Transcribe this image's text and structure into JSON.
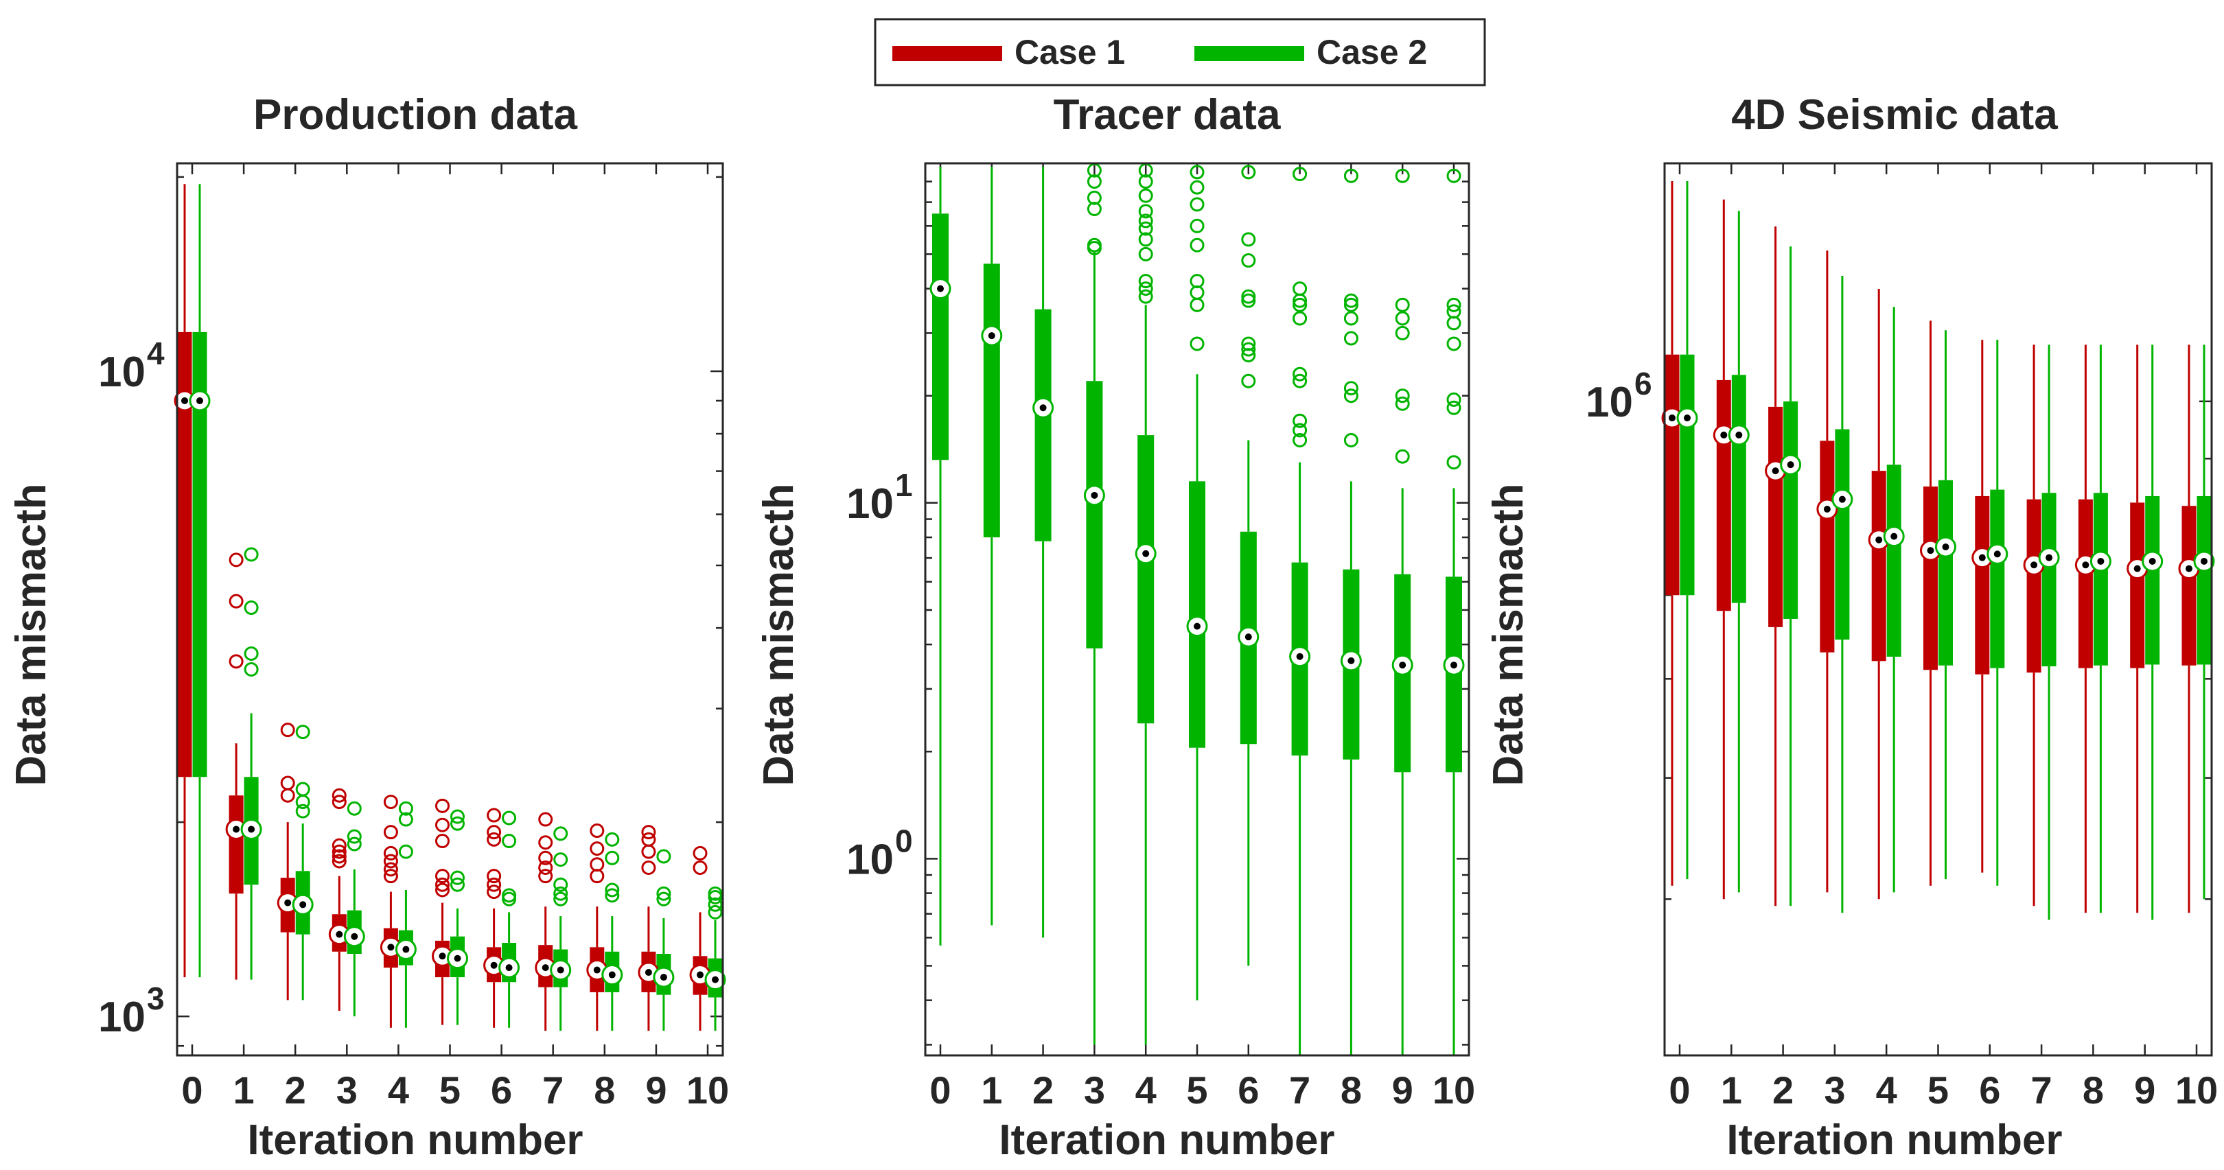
{
  "legend": {
    "items": [
      {
        "label": "Case 1",
        "color": "#c00000"
      },
      {
        "label": "Case 2",
        "color": "#00b400"
      }
    ]
  },
  "colors": {
    "case1": "#c00000",
    "case2": "#00b400",
    "axis": "#262626"
  },
  "chart_data": [
    {
      "type": "box",
      "title": "Production data",
      "xlabel": "Iteration number",
      "ylabel": "Data mismacth",
      "yscale": "log",
      "ylim": [
        870,
        21000
      ],
      "ytick_labels": [
        {
          "value": 1000,
          "exp": "3"
        },
        {
          "value": 10000,
          "exp": "4"
        }
      ],
      "categories": [
        "0",
        "1",
        "2",
        "3",
        "4",
        "5",
        "6",
        "7",
        "8",
        "9",
        "10"
      ],
      "series": [
        {
          "name": "Case 1",
          "boxes": [
            {
              "whislo": 1150,
              "q1": 2350,
              "med": 9000,
              "q3": 11500,
              "whishi": 19500,
              "fliers": []
            },
            {
              "whislo": 1140,
              "q1": 1550,
              "med": 1950,
              "q3": 2200,
              "whishi": 2650,
              "fliers": [
                3550,
                4400,
                5100
              ]
            },
            {
              "whislo": 1060,
              "q1": 1350,
              "med": 1500,
              "q3": 1640,
              "whishi": 2000,
              "fliers": [
                2200,
                2300,
                2780
              ]
            },
            {
              "whislo": 1020,
              "q1": 1260,
              "med": 1340,
              "q3": 1440,
              "whishi": 1650,
              "fliers": [
                1740,
                1770,
                1800,
                1840,
                2150,
                2200
              ]
            },
            {
              "whislo": 960,
              "q1": 1190,
              "med": 1280,
              "q3": 1370,
              "whishi": 1560,
              "fliers": [
                1650,
                1690,
                1740,
                1790,
                1930,
                2150
              ]
            },
            {
              "whislo": 970,
              "q1": 1150,
              "med": 1240,
              "q3": 1310,
              "whishi": 1500,
              "fliers": [
                1570,
                1600,
                1650,
                1870,
                1980,
                2120
              ]
            },
            {
              "whislo": 960,
              "q1": 1130,
              "med": 1200,
              "q3": 1280,
              "whishi": 1470,
              "fliers": [
                1560,
                1600,
                1650,
                1880,
                1930,
                2050
              ]
            },
            {
              "whislo": 950,
              "q1": 1110,
              "med": 1190,
              "q3": 1290,
              "whishi": 1480,
              "fliers": [
                1650,
                1700,
                1760,
                1860,
                2020
              ]
            },
            {
              "whislo": 950,
              "q1": 1090,
              "med": 1180,
              "q3": 1280,
              "whishi": 1480,
              "fliers": [
                1650,
                1720,
                1820,
                1940
              ]
            },
            {
              "whislo": 950,
              "q1": 1090,
              "med": 1170,
              "q3": 1260,
              "whishi": 1480,
              "fliers": [
                1700,
                1800,
                1880,
                1930
              ]
            },
            {
              "whislo": 950,
              "q1": 1080,
              "med": 1160,
              "q3": 1240,
              "whishi": 1450,
              "fliers": [
                1700,
                1790
              ]
            }
          ]
        },
        {
          "name": "Case 2",
          "boxes": [
            {
              "whislo": 1150,
              "q1": 2350,
              "med": 9000,
              "q3": 11500,
              "whishi": 19500,
              "fliers": []
            },
            {
              "whislo": 1140,
              "q1": 1600,
              "med": 1950,
              "q3": 2350,
              "whishi": 2950,
              "fliers": [
                3450,
                3650,
                4300,
                5200
              ]
            },
            {
              "whislo": 1060,
              "q1": 1340,
              "med": 1490,
              "q3": 1680,
              "whishi": 1990,
              "fliers": [
                2080,
                2150,
                2250,
                2760
              ]
            },
            {
              "whislo": 1000,
              "q1": 1250,
              "med": 1330,
              "q3": 1460,
              "whishi": 1690,
              "fliers": [
                1850,
                1900,
                2100
              ]
            },
            {
              "whislo": 960,
              "q1": 1200,
              "med": 1270,
              "q3": 1360,
              "whishi": 1570,
              "fliers": [
                1800,
                2020,
                2100
              ]
            },
            {
              "whislo": 970,
              "q1": 1150,
              "med": 1230,
              "q3": 1330,
              "whishi": 1470,
              "fliers": [
                1600,
                1640,
                1990,
                2040
              ]
            },
            {
              "whislo": 960,
              "q1": 1130,
              "med": 1190,
              "q3": 1300,
              "whishi": 1450,
              "fliers": [
                1520,
                1540,
                1870,
                2030
              ]
            },
            {
              "whislo": 950,
              "q1": 1110,
              "med": 1180,
              "q3": 1270,
              "whishi": 1430,
              "fliers": [
                1520,
                1550,
                1600,
                1750,
                1920
              ]
            },
            {
              "whislo": 950,
              "q1": 1090,
              "med": 1160,
              "q3": 1260,
              "whishi": 1430,
              "fliers": [
                1540,
                1570,
                1760,
                1880
              ]
            },
            {
              "whislo": 950,
              "q1": 1080,
              "med": 1150,
              "q3": 1250,
              "whishi": 1420,
              "fliers": [
                1520,
                1550,
                1770
              ]
            },
            {
              "whislo": 950,
              "q1": 1070,
              "med": 1140,
              "q3": 1230,
              "whishi": 1410,
              "fliers": [
                1450,
                1490,
                1530,
                1550
              ]
            }
          ]
        }
      ]
    },
    {
      "type": "box",
      "title": "Tracer data",
      "xlabel": "Iteration number",
      "ylabel": "Data mismacth",
      "yscale": "log",
      "ylim": [
        0.28,
        90
      ],
      "ytick_labels": [
        {
          "value": 1,
          "exp": "0"
        },
        {
          "value": 10,
          "exp": "1"
        }
      ],
      "categories": [
        "0",
        "1",
        "2",
        "3",
        "4",
        "5",
        "6",
        "7",
        "8",
        "9",
        "10"
      ],
      "series": [
        {
          "name": "Case 2",
          "boxes": [
            {
              "whislo": 0.57,
              "q1": 13.2,
              "med": 40.0,
              "q3": 65.0,
              "whishi": 88.0,
              "fliers": []
            },
            {
              "whislo": 0.65,
              "q1": 8.0,
              "med": 29.5,
              "q3": 47.0,
              "whishi": 88.0,
              "fliers": []
            },
            {
              "whislo": 0.6,
              "q1": 7.8,
              "med": 18.5,
              "q3": 35.0,
              "whishi": 88.0,
              "fliers": []
            },
            {
              "whislo": 0.3,
              "q1": 3.9,
              "med": 10.5,
              "q3": 22.0,
              "whishi": 51.0,
              "fliers": [
                52.0,
                53.0,
                67.0,
                72.0,
                80.0,
                86.0
              ]
            },
            {
              "whislo": 0.3,
              "q1": 2.4,
              "med": 7.2,
              "q3": 15.5,
              "whishi": 36.0,
              "fliers": [
                38.0,
                40.0,
                42.0,
                50.0,
                55.0,
                59.0,
                62.0,
                66.0,
                73.0,
                80.0,
                86.0
              ]
            },
            {
              "whislo": 0.4,
              "q1": 2.05,
              "med": 4.5,
              "q3": 11.5,
              "whishi": 23.0,
              "fliers": [
                28.0,
                36.0,
                39.0,
                42.0,
                53.0,
                60.0,
                69.0,
                77.0,
                85.0
              ]
            },
            {
              "whislo": 0.5,
              "q1": 2.1,
              "med": 4.2,
              "q3": 8.3,
              "whishi": 15.0,
              "fliers": [
                22.0,
                26.0,
                27.0,
                28.0,
                37.0,
                38.0,
                48.0,
                55.0,
                85.0
              ]
            },
            {
              "whislo": 0.28,
              "q1": 1.95,
              "med": 3.7,
              "q3": 6.8,
              "whishi": 13.0,
              "fliers": [
                15.0,
                16.0,
                17.0,
                22.0,
                23.0,
                33.0,
                36.0,
                37.0,
                40.0,
                84.0
              ]
            },
            {
              "whislo": 0.28,
              "q1": 1.9,
              "med": 3.6,
              "q3": 6.5,
              "whishi": 11.5,
              "fliers": [
                15.0,
                20.0,
                21.0,
                29.0,
                33.0,
                36.0,
                37.0,
                83.0
              ]
            },
            {
              "whislo": 0.28,
              "q1": 1.75,
              "med": 3.5,
              "q3": 6.3,
              "whishi": 11.0,
              "fliers": [
                13.5,
                19.0,
                20.0,
                30.0,
                33.0,
                36.0,
                83.0
              ]
            },
            {
              "whislo": 0.28,
              "q1": 1.75,
              "med": 3.5,
              "q3": 6.2,
              "whishi": 11.0,
              "fliers": [
                13.0,
                18.5,
                19.5,
                28.0,
                32.0,
                34.5,
                36.0,
                83.0
              ]
            }
          ]
        }
      ]
    },
    {
      "type": "box",
      "title": "4D Seismic data",
      "xlabel": "Iteration number",
      "ylabel": "Data mismacth",
      "yscale": "log",
      "ylim": [
        300000,
        1550000
      ],
      "ytick_labels": [
        {
          "value": 1000000,
          "exp": "6"
        }
      ],
      "categories": [
        "0",
        "1",
        "2",
        "3",
        "4",
        "5",
        "6",
        "7",
        "8",
        "9",
        "10"
      ],
      "series": [
        {
          "name": "Case 1",
          "boxes": [
            {
              "whislo": 410000,
              "q1": 700000,
              "med": 970000,
              "q3": 1090000,
              "whishi": 1500000,
              "fliers": []
            },
            {
              "whislo": 400000,
              "q1": 680000,
              "med": 940000,
              "q3": 1040000,
              "whishi": 1450000,
              "fliers": []
            },
            {
              "whislo": 395000,
              "q1": 660000,
              "med": 880000,
              "q3": 990000,
              "whishi": 1380000,
              "fliers": []
            },
            {
              "whislo": 405000,
              "q1": 630000,
              "med": 820000,
              "q3": 930000,
              "whishi": 1320000,
              "fliers": []
            },
            {
              "whislo": 400000,
              "q1": 620000,
              "med": 775000,
              "q3": 880000,
              "whishi": 1230000,
              "fliers": []
            },
            {
              "whislo": 410000,
              "q1": 610000,
              "med": 760000,
              "q3": 855000,
              "whishi": 1160000,
              "fliers": []
            },
            {
              "whislo": 420000,
              "q1": 605000,
              "med": 750000,
              "q3": 840000,
              "whishi": 1120000,
              "fliers": []
            },
            {
              "whislo": 395000,
              "q1": 607000,
              "med": 740000,
              "q3": 835000,
              "whishi": 1110000,
              "fliers": []
            },
            {
              "whislo": 390000,
              "q1": 612000,
              "med": 740000,
              "q3": 835000,
              "whishi": 1110000,
              "fliers": []
            },
            {
              "whislo": 390000,
              "q1": 612000,
              "med": 735000,
              "q3": 830000,
              "whishi": 1110000,
              "fliers": []
            },
            {
              "whislo": 390000,
              "q1": 615000,
              "med": 735000,
              "q3": 825000,
              "whishi": 1110000,
              "fliers": []
            }
          ]
        },
        {
          "name": "Case 2",
          "boxes": [
            {
              "whislo": 415000,
              "q1": 700000,
              "med": 970000,
              "q3": 1090000,
              "whishi": 1500000,
              "fliers": []
            },
            {
              "whislo": 405000,
              "q1": 690000,
              "med": 940000,
              "q3": 1050000,
              "whishi": 1420000,
              "fliers": []
            },
            {
              "whislo": 395000,
              "q1": 670000,
              "med": 890000,
              "q3": 1000000,
              "whishi": 1330000,
              "fliers": []
            },
            {
              "whislo": 390000,
              "q1": 645000,
              "med": 835000,
              "q3": 950000,
              "whishi": 1260000,
              "fliers": []
            },
            {
              "whislo": 405000,
              "q1": 625000,
              "med": 780000,
              "q3": 890000,
              "whishi": 1190000,
              "fliers": []
            },
            {
              "whislo": 415000,
              "q1": 615000,
              "med": 765000,
              "q3": 865000,
              "whishi": 1140000,
              "fliers": []
            },
            {
              "whislo": 410000,
              "q1": 612000,
              "med": 755000,
              "q3": 850000,
              "whishi": 1120000,
              "fliers": []
            },
            {
              "whislo": 385000,
              "q1": 614000,
              "med": 750000,
              "q3": 845000,
              "whishi": 1110000,
              "fliers": []
            },
            {
              "whislo": 390000,
              "q1": 615000,
              "med": 745000,
              "q3": 845000,
              "whishi": 1110000,
              "fliers": []
            },
            {
              "whislo": 385000,
              "q1": 616000,
              "med": 745000,
              "q3": 840000,
              "whishi": 1110000,
              "fliers": []
            },
            {
              "whislo": 400000,
              "q1": 616000,
              "med": 745000,
              "q3": 840000,
              "whishi": 1110000,
              "fliers": []
            }
          ]
        }
      ]
    }
  ]
}
